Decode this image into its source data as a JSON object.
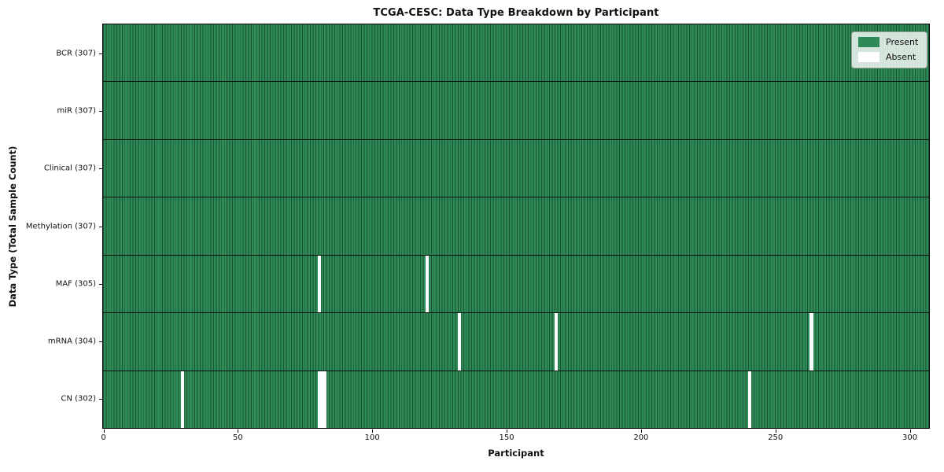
{
  "figure": {
    "title": "TCGA-CESC: Data Type Breakdown by Participant"
  },
  "axes": {
    "xlabel": "Participant",
    "ylabel": "Data Type (Total Sample Count)",
    "x_tick_values": [
      0,
      50,
      100,
      150,
      200,
      250,
      300
    ]
  },
  "legend": {
    "entries": [
      {
        "label": "Present",
        "color": "#2e8b57"
      },
      {
        "label": "Absent",
        "color": "#ffffff"
      }
    ]
  },
  "colors": {
    "present": "#2e8b57",
    "absent": "#ffffff",
    "gridline": "rgba(0,0,0,0.42)",
    "row_divider": "rgba(0,0,0,0.85)"
  },
  "chart_data": {
    "type": "heatmap",
    "title": "TCGA-CESC: Data Type Breakdown by Participant",
    "xlabel": "Participant",
    "ylabel": "Data Type (Total Sample Count)",
    "x_axis": {
      "min": 0,
      "max": 307,
      "ticks": [
        0,
        50,
        100,
        150,
        200,
        250,
        300
      ]
    },
    "n_participants": 307,
    "cell_states": [
      "Present",
      "Absent"
    ],
    "legend_position": "upper right",
    "rows": [
      {
        "label": "BCR (307)",
        "data_type": "BCR",
        "present_count": 307,
        "absent_participants": []
      },
      {
        "label": "miR (307)",
        "data_type": "miR",
        "present_count": 307,
        "absent_participants": []
      },
      {
        "label": "Clinical (307)",
        "data_type": "Clinical",
        "present_count": 307,
        "absent_participants": []
      },
      {
        "label": "Methylation (307)",
        "data_type": "Methylation",
        "present_count": 307,
        "absent_participants": []
      },
      {
        "label": "MAF (305)",
        "data_type": "MAF",
        "present_count": 305,
        "absent_participants": [
          80,
          120
        ]
      },
      {
        "label": "mRNA (304)",
        "data_type": "mRNA",
        "present_count": 304,
        "absent_participants": [
          132,
          168,
          263
        ]
      },
      {
        "label": "CN (302)",
        "data_type": "CN",
        "present_count": 302,
        "absent_participants": [
          29,
          80,
          81,
          82,
          240
        ]
      }
    ]
  }
}
